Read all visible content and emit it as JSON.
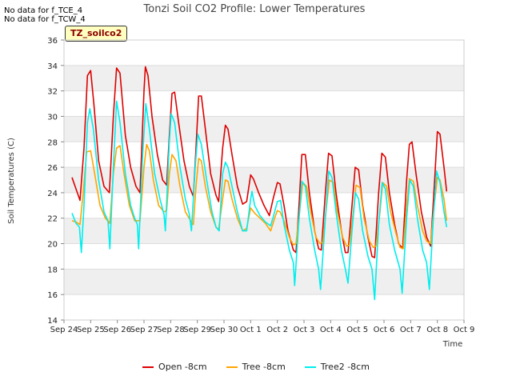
{
  "notes": [
    "No data for f_TCE_4",
    "No data for f_TCW_4"
  ],
  "site_label": "TZ_soilco2",
  "chart_data": {
    "type": "line",
    "title": "Tonzi Soil CO2 Profile: Lower Temperatures",
    "xlabel": "Time",
    "ylabel": "Soil Temperatures (C)",
    "ylim": [
      14,
      36
    ],
    "yticks": [
      14,
      16,
      18,
      20,
      22,
      24,
      26,
      28,
      30,
      32,
      34,
      36
    ],
    "xlim": [
      0,
      15
    ],
    "xticks": [
      {
        "x": 0,
        "label": "Sep 24"
      },
      {
        "x": 1,
        "label": "Sep 25"
      },
      {
        "x": 2,
        "label": "Sep 26"
      },
      {
        "x": 3,
        "label": "Sep 27"
      },
      {
        "x": 4,
        "label": "Sep 28"
      },
      {
        "x": 5,
        "label": "Sep 29"
      },
      {
        "x": 6,
        "label": "Sep 30"
      },
      {
        "x": 7,
        "label": "Oct 1"
      },
      {
        "x": 8,
        "label": "Oct 2"
      },
      {
        "x": 9,
        "label": "Oct 3"
      },
      {
        "x": 10,
        "label": "Oct 4"
      },
      {
        "x": 11,
        "label": "Oct 5"
      },
      {
        "x": 12,
        "label": "Oct 6"
      },
      {
        "x": 13,
        "label": "Oct 7"
      },
      {
        "x": 14,
        "label": "Oct 8"
      },
      {
        "x": 15,
        "label": "Oct 9"
      }
    ],
    "grid": true,
    "legend_position": "bottom-center",
    "series": [
      {
        "name": "Open -8cm",
        "color": "#dd0000",
        "points": [
          [
            0.3,
            25.2
          ],
          [
            0.45,
            24.3
          ],
          [
            0.6,
            23.4
          ],
          [
            0.75,
            27.5
          ],
          [
            0.88,
            33.2
          ],
          [
            1.0,
            33.6
          ],
          [
            1.12,
            31.0
          ],
          [
            1.3,
            26.5
          ],
          [
            1.5,
            24.5
          ],
          [
            1.7,
            24.0
          ],
          [
            1.85,
            30.0
          ],
          [
            1.97,
            33.8
          ],
          [
            2.1,
            33.4
          ],
          [
            2.3,
            28.5
          ],
          [
            2.5,
            26.0
          ],
          [
            2.7,
            24.5
          ],
          [
            2.85,
            24.0
          ],
          [
            3.0,
            32.0
          ],
          [
            3.05,
            33.9
          ],
          [
            3.15,
            33.2
          ],
          [
            3.3,
            30.0
          ],
          [
            3.5,
            27.0
          ],
          [
            3.7,
            25.0
          ],
          [
            3.85,
            24.6
          ],
          [
            3.95,
            28.5
          ],
          [
            4.05,
            31.8
          ],
          [
            4.15,
            31.9
          ],
          [
            4.3,
            29.5
          ],
          [
            4.5,
            26.5
          ],
          [
            4.7,
            24.5
          ],
          [
            4.85,
            23.7
          ],
          [
            4.95,
            27.5
          ],
          [
            5.05,
            31.6
          ],
          [
            5.15,
            31.6
          ],
          [
            5.3,
            29.0
          ],
          [
            5.5,
            25.5
          ],
          [
            5.7,
            23.8
          ],
          [
            5.8,
            23.3
          ],
          [
            5.95,
            27.5
          ],
          [
            6.05,
            29.3
          ],
          [
            6.15,
            29.0
          ],
          [
            6.3,
            27.0
          ],
          [
            6.5,
            24.5
          ],
          [
            6.7,
            23.1
          ],
          [
            6.85,
            23.3
          ],
          [
            7.0,
            25.4
          ],
          [
            7.1,
            25.1
          ],
          [
            7.3,
            24.0
          ],
          [
            7.5,
            23.0
          ],
          [
            7.7,
            22.2
          ],
          [
            7.85,
            23.6
          ],
          [
            8.0,
            24.8
          ],
          [
            8.1,
            24.7
          ],
          [
            8.25,
            23.0
          ],
          [
            8.4,
            21.0
          ],
          [
            8.6,
            19.5
          ],
          [
            8.7,
            19.3
          ],
          [
            8.8,
            22.5
          ],
          [
            8.92,
            27.0
          ],
          [
            9.05,
            27.0
          ],
          [
            9.2,
            24.0
          ],
          [
            9.4,
            21.0
          ],
          [
            9.55,
            19.6
          ],
          [
            9.65,
            19.5
          ],
          [
            9.8,
            24.0
          ],
          [
            9.92,
            27.1
          ],
          [
            10.05,
            26.9
          ],
          [
            10.2,
            24.0
          ],
          [
            10.4,
            21.0
          ],
          [
            10.55,
            19.3
          ],
          [
            10.65,
            19.3
          ],
          [
            10.8,
            23.0
          ],
          [
            10.92,
            26.0
          ],
          [
            11.05,
            25.8
          ],
          [
            11.2,
            23.0
          ],
          [
            11.4,
            20.5
          ],
          [
            11.55,
            19.0
          ],
          [
            11.65,
            18.9
          ],
          [
            11.8,
            24.0
          ],
          [
            11.92,
            27.1
          ],
          [
            12.05,
            26.8
          ],
          [
            12.2,
            24.0
          ],
          [
            12.4,
            21.5
          ],
          [
            12.55,
            20.0
          ],
          [
            12.7,
            19.6
          ],
          [
            12.85,
            25.0
          ],
          [
            12.95,
            27.8
          ],
          [
            13.05,
            28.0
          ],
          [
            13.2,
            25.5
          ],
          [
            13.4,
            22.5
          ],
          [
            13.6,
            20.5
          ],
          [
            13.75,
            19.8
          ],
          [
            13.9,
            25.0
          ],
          [
            14.0,
            28.8
          ],
          [
            14.1,
            28.6
          ],
          [
            14.25,
            26.0
          ],
          [
            14.35,
            24.1
          ]
        ]
      },
      {
        "name": "Tree -8cm",
        "color": "#ffa500",
        "points": [
          [
            0.3,
            21.8
          ],
          [
            0.45,
            21.7
          ],
          [
            0.6,
            21.5
          ],
          [
            0.72,
            24.0
          ],
          [
            0.85,
            27.2
          ],
          [
            1.0,
            27.3
          ],
          [
            1.15,
            25.5
          ],
          [
            1.35,
            23.0
          ],
          [
            1.55,
            22.0
          ],
          [
            1.72,
            21.6
          ],
          [
            1.85,
            25.5
          ],
          [
            1.97,
            27.5
          ],
          [
            2.1,
            27.7
          ],
          [
            2.25,
            25.5
          ],
          [
            2.45,
            23.0
          ],
          [
            2.65,
            21.8
          ],
          [
            2.85,
            21.8
          ],
          [
            3.0,
            26.0
          ],
          [
            3.1,
            27.8
          ],
          [
            3.2,
            27.3
          ],
          [
            3.35,
            25.0
          ],
          [
            3.55,
            23.0
          ],
          [
            3.75,
            22.5
          ],
          [
            3.85,
            22.6
          ],
          [
            3.95,
            25.5
          ],
          [
            4.05,
            27.0
          ],
          [
            4.2,
            26.5
          ],
          [
            4.35,
            24.5
          ],
          [
            4.55,
            22.5
          ],
          [
            4.75,
            21.8
          ],
          [
            4.85,
            21.5
          ],
          [
            4.95,
            24.5
          ],
          [
            5.05,
            26.7
          ],
          [
            5.15,
            26.5
          ],
          [
            5.3,
            24.5
          ],
          [
            5.5,
            22.5
          ],
          [
            5.7,
            21.3
          ],
          [
            5.8,
            21.1
          ],
          [
            5.95,
            23.5
          ],
          [
            6.05,
            25.0
          ],
          [
            6.15,
            24.9
          ],
          [
            6.3,
            23.5
          ],
          [
            6.5,
            22.0
          ],
          [
            6.7,
            21.0
          ],
          [
            6.85,
            21.2
          ],
          [
            7.0,
            22.8
          ],
          [
            7.15,
            22.4
          ],
          [
            7.35,
            22.0
          ],
          [
            7.55,
            21.6
          ],
          [
            7.75,
            21.0
          ],
          [
            7.9,
            22.0
          ],
          [
            8.0,
            22.6
          ],
          [
            8.1,
            22.5
          ],
          [
            8.25,
            21.8
          ],
          [
            8.45,
            20.5
          ],
          [
            8.6,
            19.9
          ],
          [
            8.7,
            20.0
          ],
          [
            8.85,
            22.8
          ],
          [
            8.95,
            24.8
          ],
          [
            9.1,
            24.5
          ],
          [
            9.25,
            22.5
          ],
          [
            9.45,
            20.5
          ],
          [
            9.6,
            20.0
          ],
          [
            9.7,
            20.1
          ],
          [
            9.85,
            23.0
          ],
          [
            9.95,
            25.0
          ],
          [
            10.1,
            24.8
          ],
          [
            10.25,
            22.5
          ],
          [
            10.45,
            20.5
          ],
          [
            10.6,
            19.8
          ],
          [
            10.7,
            19.9
          ],
          [
            10.85,
            22.5
          ],
          [
            10.95,
            24.6
          ],
          [
            11.1,
            24.4
          ],
          [
            11.25,
            22.0
          ],
          [
            11.45,
            20.2
          ],
          [
            11.6,
            19.7
          ],
          [
            11.7,
            19.8
          ],
          [
            11.85,
            22.5
          ],
          [
            11.95,
            24.8
          ],
          [
            12.1,
            24.5
          ],
          [
            12.25,
            22.5
          ],
          [
            12.45,
            20.8
          ],
          [
            12.6,
            19.7
          ],
          [
            12.72,
            19.6
          ],
          [
            12.85,
            23.0
          ],
          [
            12.95,
            25.1
          ],
          [
            13.1,
            24.9
          ],
          [
            13.25,
            23.0
          ],
          [
            13.45,
            21.0
          ],
          [
            13.6,
            20.2
          ],
          [
            13.75,
            20.0
          ],
          [
            13.88,
            23.0
          ],
          [
            14.0,
            25.2
          ],
          [
            14.1,
            25.0
          ],
          [
            14.25,
            23.5
          ],
          [
            14.35,
            21.8
          ]
        ]
      },
      {
        "name": "Tree2 -8cm",
        "color": "#00eeee",
        "points": [
          [
            0.3,
            22.4
          ],
          [
            0.45,
            21.6
          ],
          [
            0.58,
            21.3
          ],
          [
            0.65,
            19.3
          ],
          [
            0.75,
            23.0
          ],
          [
            0.88,
            29.5
          ],
          [
            0.97,
            30.6
          ],
          [
            1.1,
            29.0
          ],
          [
            1.3,
            25.0
          ],
          [
            1.5,
            22.5
          ],
          [
            1.65,
            21.8
          ],
          [
            1.72,
            19.6
          ],
          [
            1.85,
            26.0
          ],
          [
            1.97,
            31.2
          ],
          [
            2.1,
            29.5
          ],
          [
            2.3,
            25.5
          ],
          [
            2.5,
            23.0
          ],
          [
            2.65,
            22.0
          ],
          [
            2.75,
            21.5
          ],
          [
            2.8,
            19.6
          ],
          [
            2.95,
            27.0
          ],
          [
            3.07,
            31.0
          ],
          [
            3.2,
            29.0
          ],
          [
            3.4,
            25.5
          ],
          [
            3.6,
            23.5
          ],
          [
            3.75,
            22.3
          ],
          [
            3.8,
            21.0
          ],
          [
            3.95,
            28.0
          ],
          [
            4.02,
            30.2
          ],
          [
            4.15,
            29.5
          ],
          [
            4.35,
            26.0
          ],
          [
            4.55,
            23.5
          ],
          [
            4.7,
            22.3
          ],
          [
            4.78,
            21.0
          ],
          [
            4.92,
            26.0
          ],
          [
            5.02,
            28.6
          ],
          [
            5.15,
            27.8
          ],
          [
            5.35,
            25.0
          ],
          [
            5.55,
            22.5
          ],
          [
            5.7,
            21.3
          ],
          [
            5.82,
            21.0
          ],
          [
            5.95,
            25.5
          ],
          [
            6.05,
            26.4
          ],
          [
            6.15,
            26.0
          ],
          [
            6.3,
            24.5
          ],
          [
            6.5,
            22.5
          ],
          [
            6.7,
            21.0
          ],
          [
            6.85,
            21.0
          ],
          [
            7.0,
            23.5
          ],
          [
            7.05,
            24.1
          ],
          [
            7.15,
            23.0
          ],
          [
            7.35,
            22.2
          ],
          [
            7.55,
            21.7
          ],
          [
            7.75,
            21.4
          ],
          [
            7.9,
            22.5
          ],
          [
            8.0,
            23.3
          ],
          [
            8.12,
            23.4
          ],
          [
            8.25,
            21.5
          ],
          [
            8.45,
            19.5
          ],
          [
            8.6,
            18.5
          ],
          [
            8.65,
            16.7
          ],
          [
            8.8,
            21.5
          ],
          [
            8.92,
            24.9
          ],
          [
            9.05,
            24.5
          ],
          [
            9.2,
            22.0
          ],
          [
            9.4,
            19.5
          ],
          [
            9.55,
            18.0
          ],
          [
            9.62,
            16.4
          ],
          [
            9.8,
            22.0
          ],
          [
            9.93,
            25.7
          ],
          [
            10.05,
            25.2
          ],
          [
            10.2,
            22.5
          ],
          [
            10.4,
            19.5
          ],
          [
            10.55,
            18.0
          ],
          [
            10.65,
            16.9
          ],
          [
            10.8,
            21.0
          ],
          [
            10.93,
            24.0
          ],
          [
            11.05,
            23.5
          ],
          [
            11.2,
            21.0
          ],
          [
            11.4,
            19.0
          ],
          [
            11.55,
            18.0
          ],
          [
            11.65,
            15.6
          ],
          [
            11.8,
            21.5
          ],
          [
            11.93,
            24.8
          ],
          [
            12.05,
            24.3
          ],
          [
            12.2,
            21.5
          ],
          [
            12.4,
            19.5
          ],
          [
            12.6,
            18.0
          ],
          [
            12.68,
            16.1
          ],
          [
            12.85,
            22.0
          ],
          [
            12.97,
            25.0
          ],
          [
            13.1,
            24.5
          ],
          [
            13.25,
            22.0
          ],
          [
            13.45,
            19.5
          ],
          [
            13.6,
            18.5
          ],
          [
            13.7,
            16.4
          ],
          [
            13.85,
            22.0
          ],
          [
            13.97,
            25.7
          ],
          [
            14.1,
            24.8
          ],
          [
            14.25,
            22.5
          ],
          [
            14.35,
            21.3
          ]
        ]
      }
    ]
  }
}
